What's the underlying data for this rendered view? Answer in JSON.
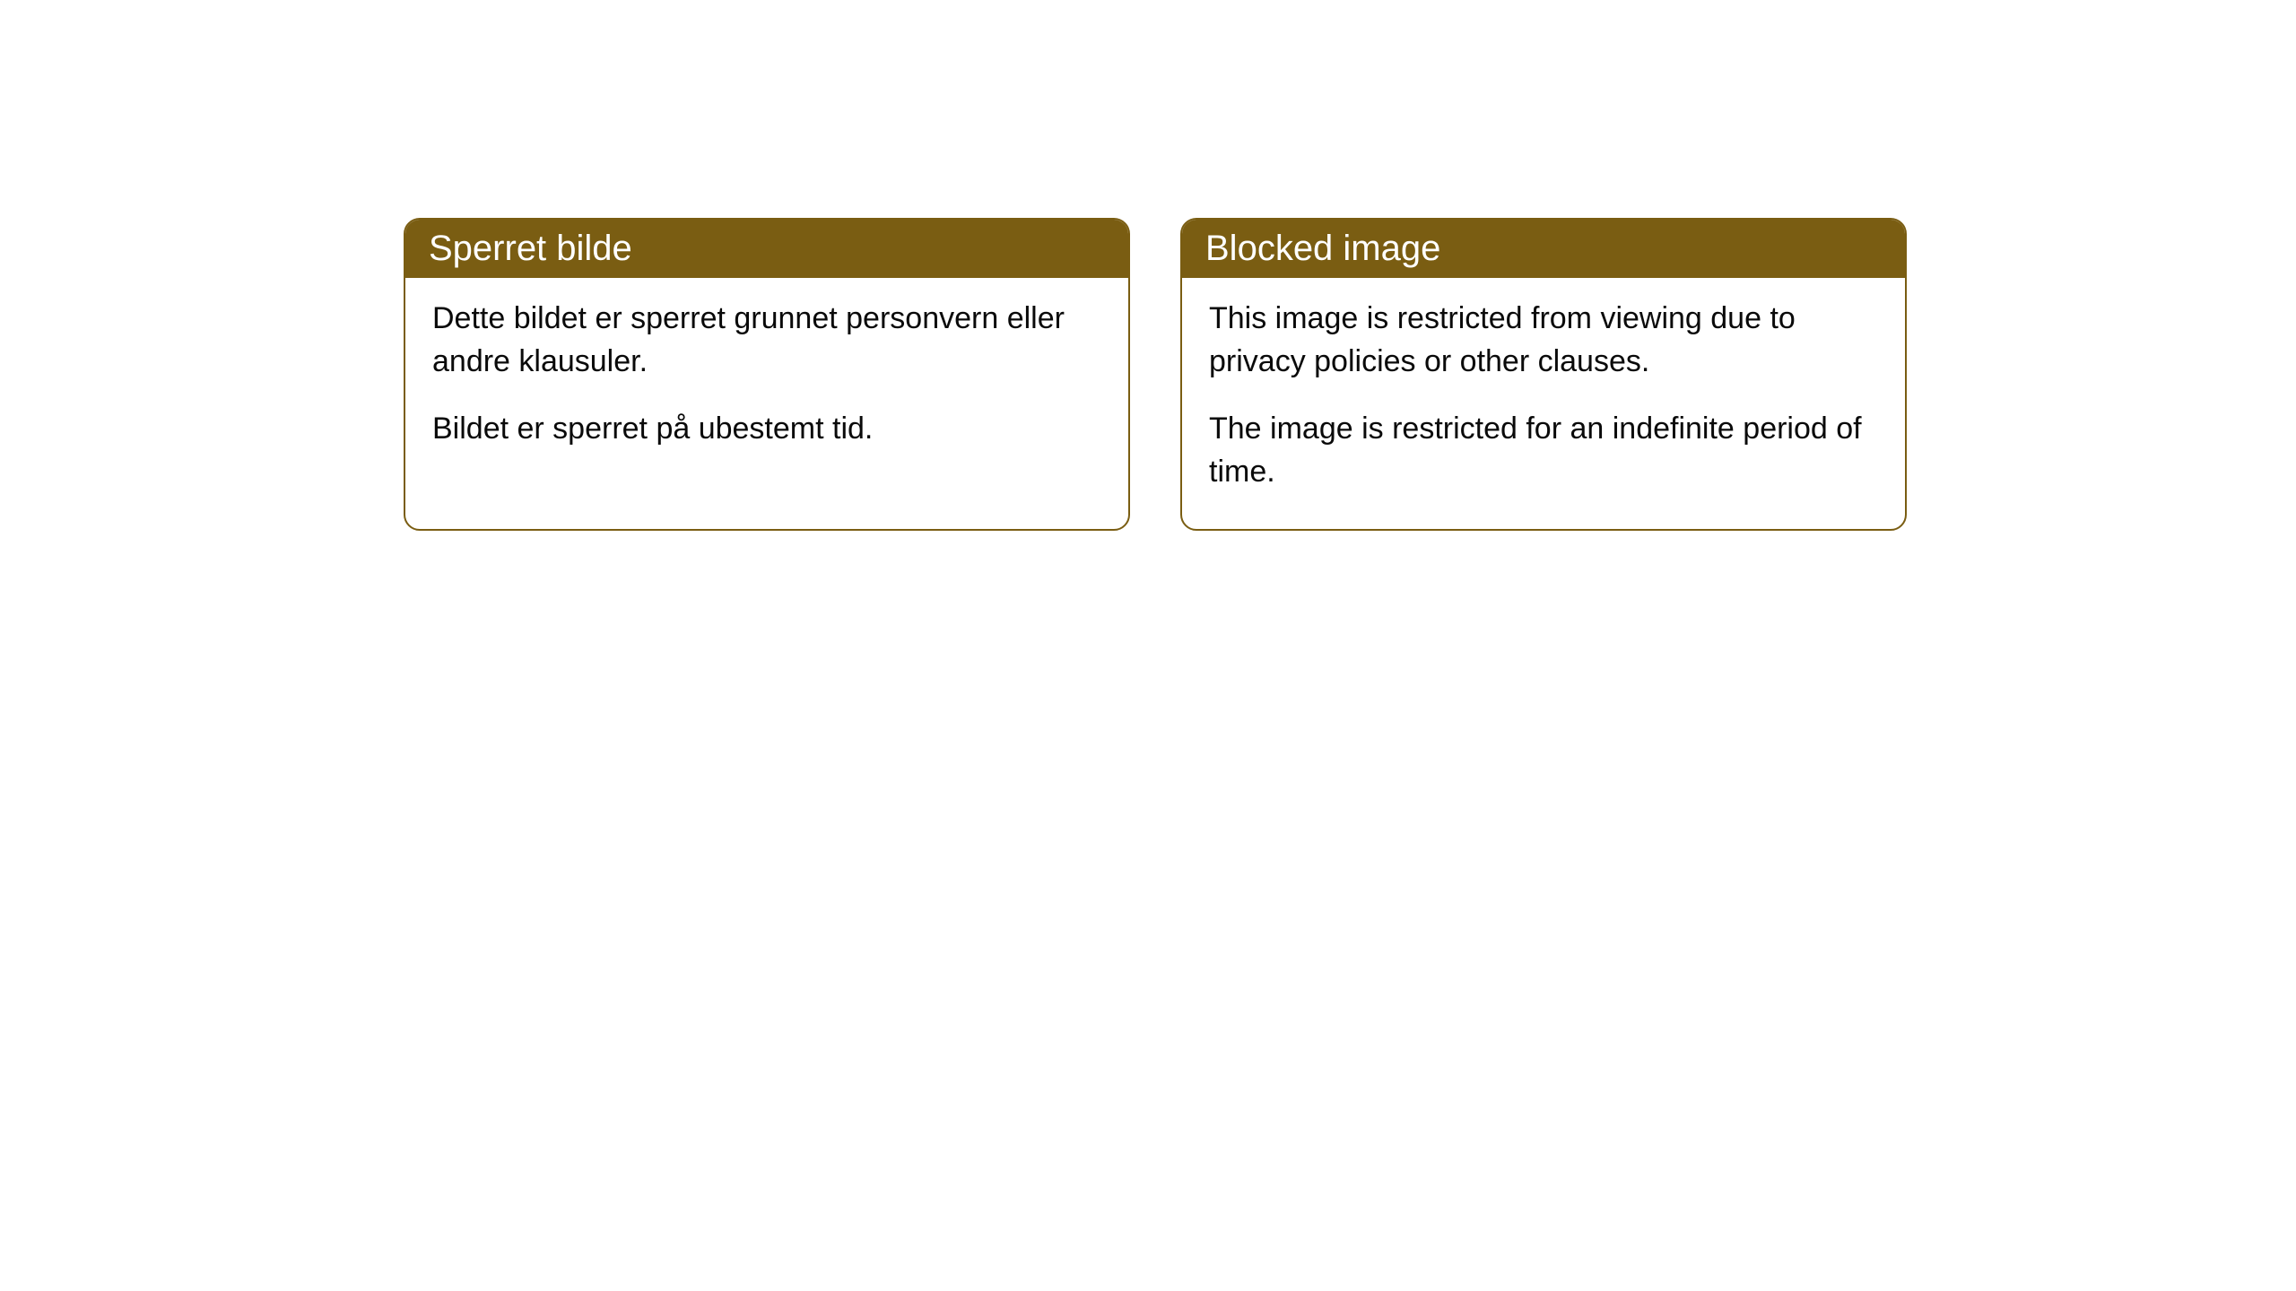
{
  "cards": [
    {
      "title": "Sperret bilde",
      "paragraph1": "Dette bildet er sperret grunnet personvern eller andre klausuler.",
      "paragraph2": "Bildet er sperret på ubestemt tid."
    },
    {
      "title": "Blocked image",
      "paragraph1": "This image is restricted from viewing due to privacy policies or other clauses.",
      "paragraph2": "The image is restricted for an indefinite period of time."
    }
  ],
  "styling": {
    "header_bg_color": "#7a5d12",
    "header_text_color": "#ffffff",
    "border_color": "#7a5d12",
    "body_bg_color": "#ffffff",
    "body_text_color": "#0a0a0a",
    "border_radius": 18,
    "title_fontsize": 40,
    "body_fontsize": 34
  }
}
